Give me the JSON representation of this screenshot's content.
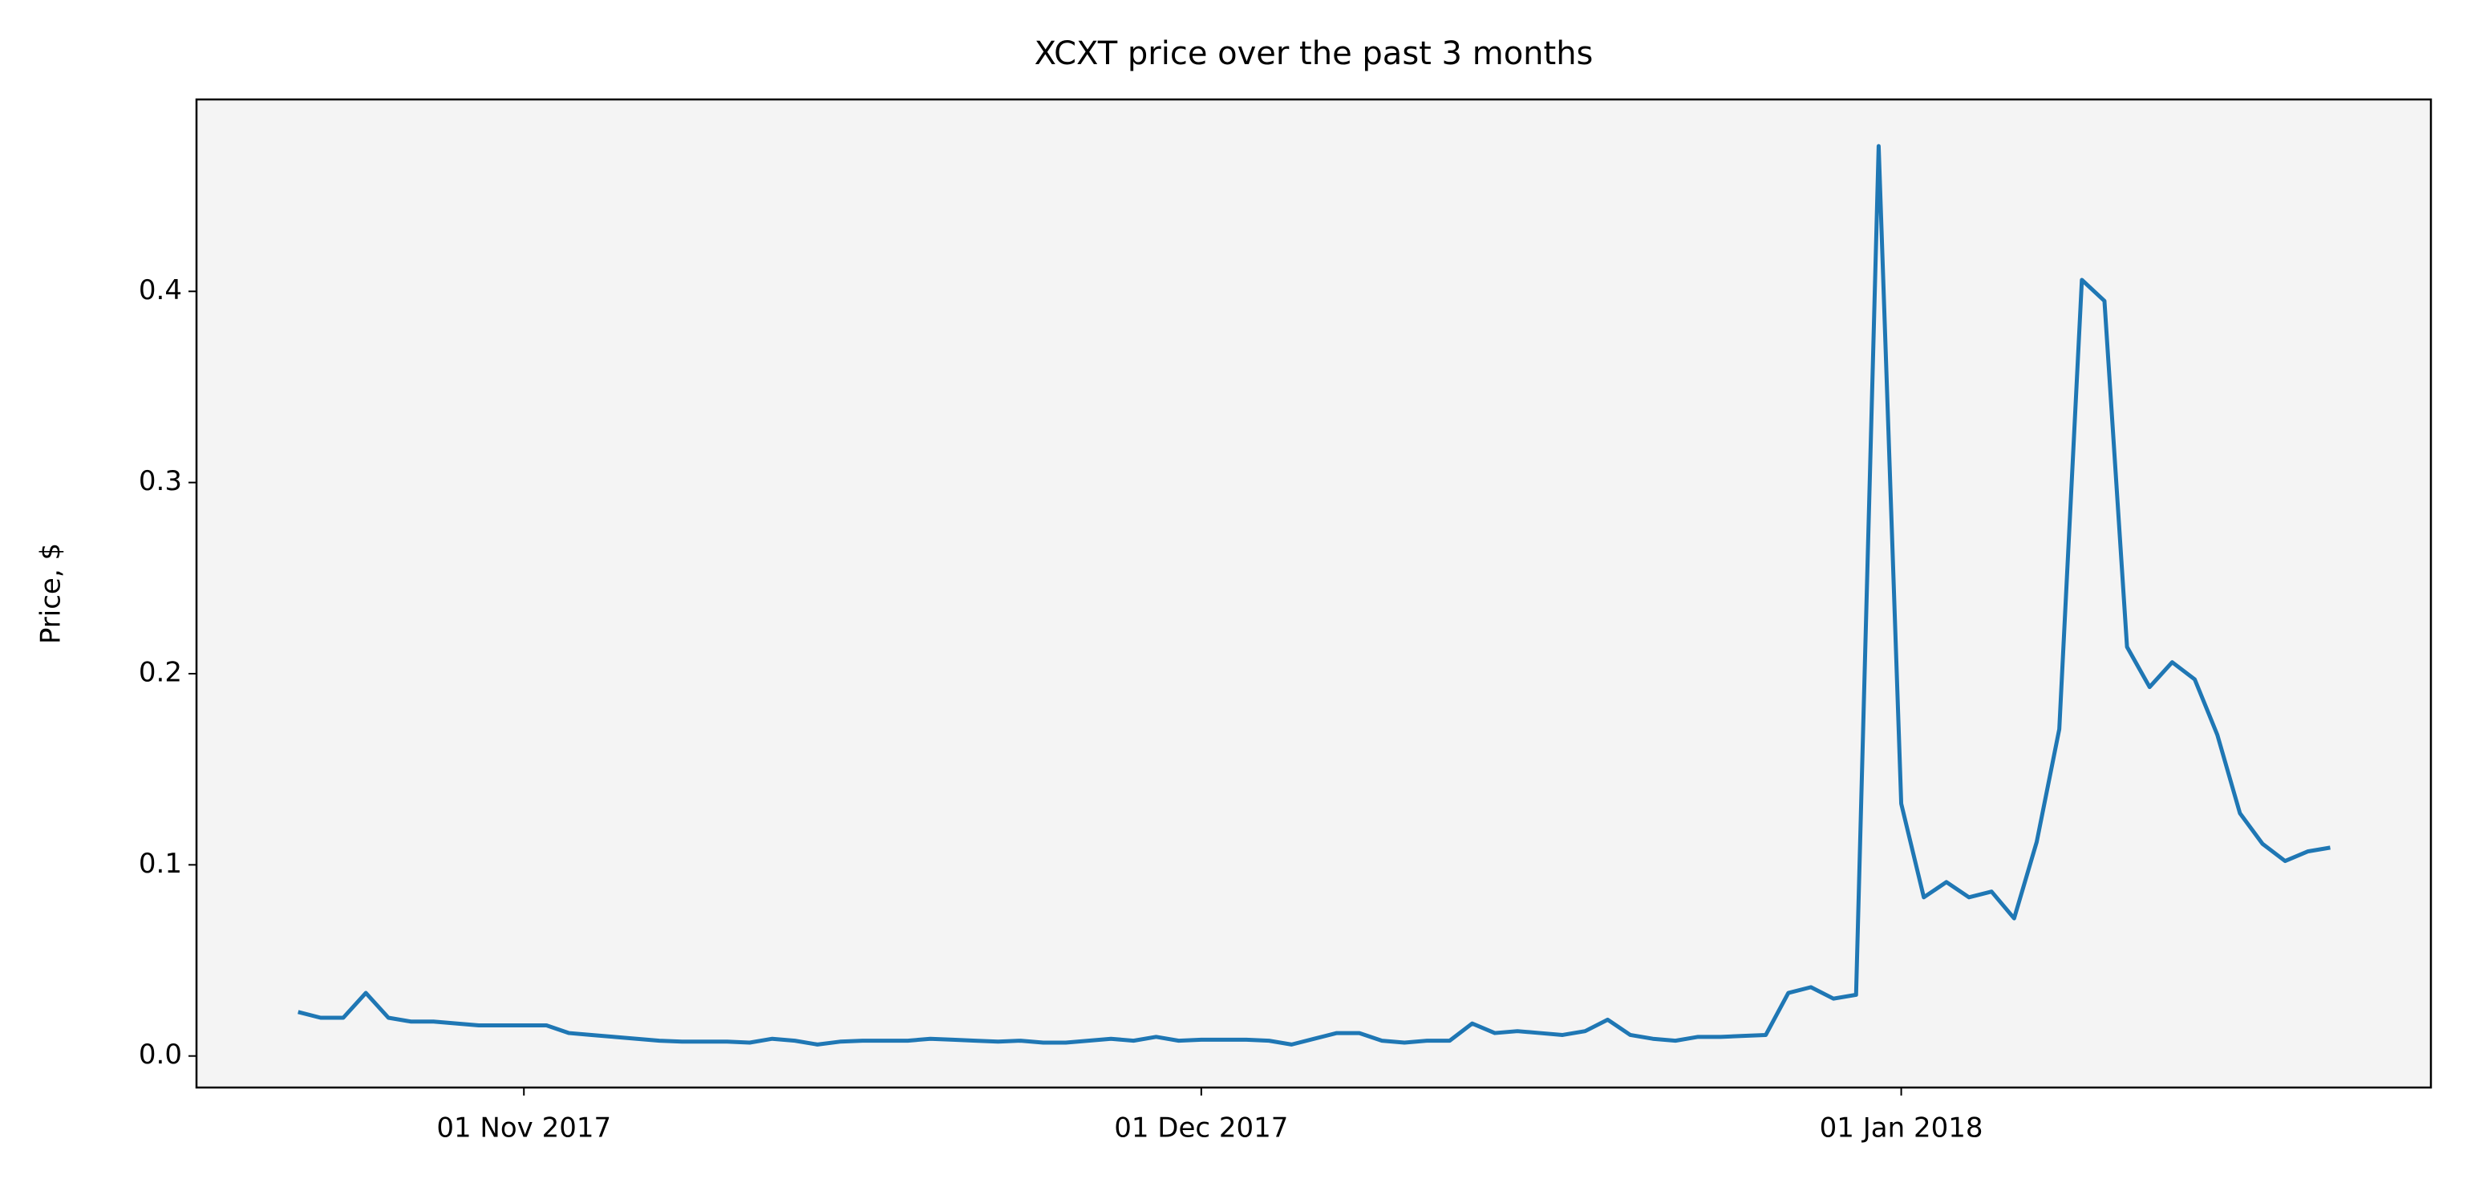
{
  "chart_data": {
    "type": "line",
    "title": "XCXT price over the past 3 months",
    "y_label": "Price, $",
    "x": [
      "2017-10-22",
      "2017-10-23",
      "2017-10-24",
      "2017-10-25",
      "2017-10-26",
      "2017-10-27",
      "2017-10-28",
      "2017-10-29",
      "2017-10-30",
      "2017-10-31",
      "2017-11-01",
      "2017-11-02",
      "2017-11-03",
      "2017-11-04",
      "2017-11-05",
      "2017-11-06",
      "2017-11-07",
      "2017-11-08",
      "2017-11-09",
      "2017-11-10",
      "2017-11-11",
      "2017-11-12",
      "2017-11-13",
      "2017-11-14",
      "2017-11-15",
      "2017-11-16",
      "2017-11-17",
      "2017-11-18",
      "2017-11-19",
      "2017-11-20",
      "2017-11-21",
      "2017-11-22",
      "2017-11-23",
      "2017-11-24",
      "2017-11-25",
      "2017-11-26",
      "2017-11-27",
      "2017-11-28",
      "2017-11-29",
      "2017-11-30",
      "2017-12-01",
      "2017-12-02",
      "2017-12-03",
      "2017-12-04",
      "2017-12-05",
      "2017-12-06",
      "2017-12-07",
      "2017-12-08",
      "2017-12-09",
      "2017-12-10",
      "2017-12-11",
      "2017-12-12",
      "2017-12-13",
      "2017-12-14",
      "2017-12-15",
      "2017-12-16",
      "2017-12-17",
      "2017-12-18",
      "2017-12-19",
      "2017-12-20",
      "2017-12-21",
      "2017-12-22",
      "2017-12-23",
      "2017-12-24",
      "2017-12-25",
      "2017-12-26",
      "2017-12-27",
      "2017-12-28",
      "2017-12-29",
      "2017-12-30",
      "2017-12-31",
      "2018-01-01",
      "2018-01-02",
      "2018-01-03",
      "2018-01-04",
      "2018-01-05",
      "2018-01-06",
      "2018-01-07",
      "2018-01-08",
      "2018-01-09",
      "2018-01-10",
      "2018-01-11",
      "2018-01-12",
      "2018-01-13",
      "2018-01-14",
      "2018-01-15",
      "2018-01-16",
      "2018-01-17",
      "2018-01-18",
      "2018-01-19",
      "2018-01-20"
    ],
    "values": [
      0.023,
      0.02,
      0.02,
      0.033,
      0.02,
      0.018,
      0.018,
      0.017,
      0.016,
      0.016,
      0.016,
      0.016,
      0.012,
      0.011,
      0.01,
      0.009,
      0.008,
      0.0075,
      0.0075,
      0.0075,
      0.007,
      0.009,
      0.008,
      0.006,
      0.0075,
      0.008,
      0.008,
      0.008,
      0.009,
      0.0085,
      0.008,
      0.0075,
      0.008,
      0.007,
      0.007,
      0.008,
      0.009,
      0.008,
      0.01,
      0.008,
      0.0085,
      0.0085,
      0.0085,
      0.008,
      0.006,
      0.009,
      0.012,
      0.012,
      0.008,
      0.007,
      0.008,
      0.008,
      0.017,
      0.012,
      0.013,
      0.012,
      0.011,
      0.013,
      0.019,
      0.011,
      0.009,
      0.008,
      0.01,
      0.01,
      0.0105,
      0.011,
      0.033,
      0.036,
      0.03,
      0.032,
      0.476,
      0.132,
      0.083,
      0.091,
      0.083,
      0.086,
      0.072,
      0.112,
      0.171,
      0.406,
      0.395,
      0.214,
      0.193,
      0.206,
      0.197,
      0.168,
      0.127,
      0.111,
      0.102,
      0.107,
      0.109
    ],
    "color": "#1f77b4",
    "background": "#f4f4f4",
    "xlim": [
      "2017-10-17T12:00",
      "2018-01-24T11:00"
    ],
    "xticks": [
      {
        "value": "2017-11-01",
        "label": "01 Nov 2017"
      },
      {
        "value": "2017-12-01",
        "label": "01 Dec 2017"
      },
      {
        "value": "2018-01-01",
        "label": "01 Jan 2018"
      }
    ],
    "ylim": [
      -0.0165,
      0.5004
    ],
    "yticks": [
      {
        "value": 0,
        "label": "0.0"
      },
      0.1,
      0.2,
      0.3,
      0.4
    ]
  }
}
